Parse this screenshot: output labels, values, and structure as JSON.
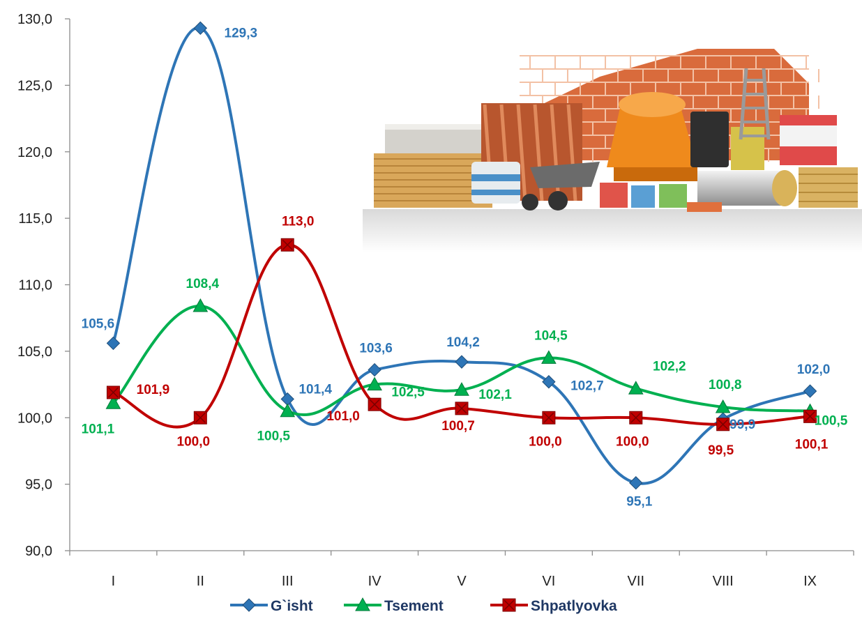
{
  "chart_data": {
    "type": "line",
    "categories": [
      "I",
      "II",
      "III",
      "IV",
      "V",
      "VI",
      "VII",
      "VIII",
      "IX"
    ],
    "ylim": [
      90,
      130
    ],
    "yticks": [
      "90,0",
      "95,0",
      "100,0",
      "105,0",
      "110,0",
      "115,0",
      "120,0",
      "125,0",
      "130,0"
    ],
    "legend_position": "bottom",
    "grid": false,
    "series": [
      {
        "name": "G`isht",
        "color": "#2e75b6",
        "marker": "diamond",
        "values": [
          105.6,
          129.3,
          101.4,
          103.6,
          104.2,
          102.7,
          95.1,
          99.9,
          102.0
        ],
        "labels": [
          "105,6",
          "129,3",
          "101,4",
          "103,6",
          "104,2",
          "102,7",
          "95,1",
          "99,9",
          "102,0"
        ]
      },
      {
        "name": "Tsement",
        "color": "#00b050",
        "marker": "triangle",
        "values": [
          101.1,
          108.4,
          100.5,
          102.5,
          102.1,
          104.5,
          102.2,
          100.8,
          100.5
        ],
        "labels": [
          "101,1",
          "108,4",
          "100,5",
          "102,5",
          "102,1",
          "104,5",
          "102,2",
          "100,8",
          "100,5"
        ]
      },
      {
        "name": "Shpatlyovka",
        "color": "#c00000",
        "marker": "square",
        "values": [
          101.9,
          100.0,
          113.0,
          101.0,
          100.7,
          100.0,
          100.0,
          99.5,
          100.1
        ],
        "labels": [
          "101,9",
          "100,0",
          "113,0",
          "101,0",
          "100,7",
          "100,0",
          "100,0",
          "99,5",
          "100,1"
        ]
      }
    ]
  }
}
